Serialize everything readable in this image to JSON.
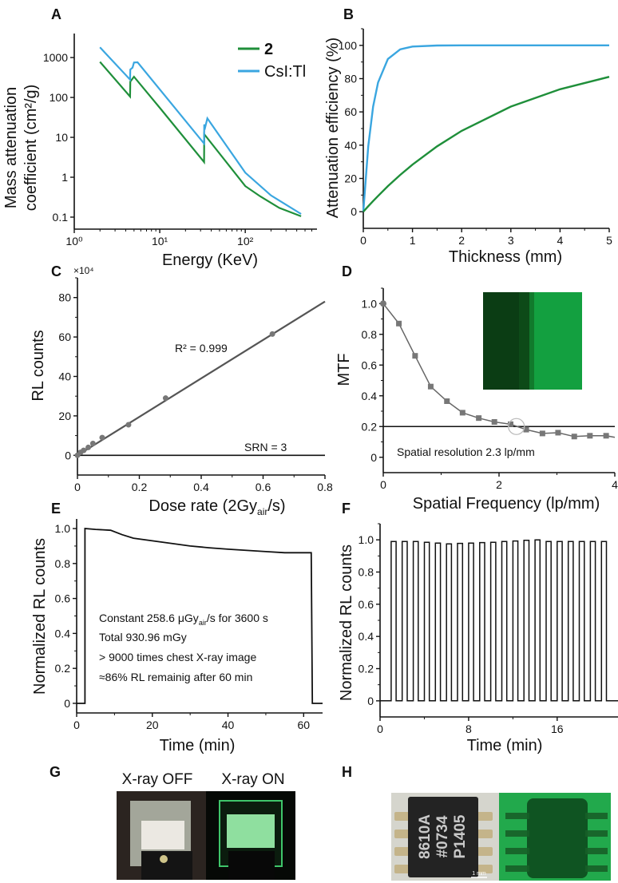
{
  "panels": {
    "A": "A",
    "B": "B",
    "C": "C",
    "D": "D",
    "E": "E",
    "F": "F",
    "G": "G",
    "H": "H"
  },
  "colors": {
    "green": "#1f8f3a",
    "blue": "#3aa6e0",
    "gray": "#555555",
    "black": "#111111"
  },
  "chart_data": [
    {
      "id": "A",
      "type": "line",
      "xlabel": "Energy (KeV)",
      "ylabel_lines": [
        "Mass attenuation",
        "coefficient (cm²/g)"
      ],
      "xscale": "log",
      "yscale": "log",
      "xlim": [
        1,
        690
      ],
      "ylim": [
        0.05,
        4000
      ],
      "xticks": [
        1,
        10,
        100
      ],
      "xtick_labels": [
        "10⁰",
        "10¹",
        "10²"
      ],
      "yticks": [
        1000,
        100,
        10,
        1,
        0.1
      ],
      "ytick_labels": [
        "1000",
        "100",
        "10",
        "1",
        "0.1"
      ],
      "legend": "top-right",
      "series": [
        {
          "name": "2",
          "color": "#1f8f3a",
          "points": [
            [
              2,
              780
            ],
            [
              4.5,
              105
            ],
            [
              4.52,
              250
            ],
            [
              5,
              330
            ],
            [
              10,
              55
            ],
            [
              33,
              2.4
            ],
            [
              33.1,
              12
            ],
            [
              100,
              0.6
            ],
            [
              150,
              0.33
            ],
            [
              250,
              0.17
            ],
            [
              450,
              0.105
            ]
          ]
        },
        {
          "name": "CsI:Tl",
          "color": "#3aa6e0",
          "points": [
            [
              2,
              1800
            ],
            [
              4.5,
              280
            ],
            [
              4.52,
              500
            ],
            [
              4.8,
              560
            ],
            [
              5,
              750
            ],
            [
              5.5,
              760
            ],
            [
              33,
              7
            ],
            [
              33.1,
              21
            ],
            [
              34,
              18
            ],
            [
              36,
              30
            ],
            [
              100,
              1.3
            ],
            [
              200,
              0.35
            ],
            [
              450,
              0.12
            ]
          ]
        }
      ]
    },
    {
      "id": "B",
      "type": "line",
      "xlabel": "Thickness (mm)",
      "ylabel": "Attenuation efficiency (%)",
      "xlim": [
        0,
        5
      ],
      "ylim": [
        -10,
        110
      ],
      "xticks": [
        0,
        1,
        2,
        3,
        4,
        5
      ],
      "yticks": [
        0,
        20,
        40,
        60,
        80,
        100
      ],
      "x": [
        0,
        0.1,
        0.2,
        0.3,
        0.5,
        0.75,
        1,
        1.5,
        2,
        3,
        4,
        5
      ],
      "series": [
        {
          "name": "CsI:Tl",
          "color": "#3aa6e0",
          "values": [
            0,
            39.3,
            63.2,
            77.7,
            91.8,
            97.6,
            99.3,
            99.9,
            100,
            100,
            100,
            100
          ]
        },
        {
          "name": "2",
          "color": "#1f8f3a",
          "values": [
            0,
            3.3,
            6.4,
            9.5,
            15.4,
            22.1,
            28.3,
            39.3,
            48.6,
            63.2,
            73.6,
            81.1
          ]
        }
      ]
    },
    {
      "id": "C",
      "type": "scatter",
      "xlabel_parts": [
        "Dose rate (2Gy",
        "air",
        "/s)"
      ],
      "ylabel": "RL counts",
      "multiplier": "×10⁴",
      "xlim": [
        0,
        0.8
      ],
      "ylim": [
        -10,
        90
      ],
      "xticks": [
        0,
        0.2,
        0.4,
        0.6,
        0.8
      ],
      "yticks": [
        0,
        20,
        40,
        60,
        80
      ],
      "points": [
        [
          0,
          0
        ],
        [
          0.01,
          1.5
        ],
        [
          0.02,
          2.5
        ],
        [
          0.035,
          4
        ],
        [
          0.05,
          6
        ],
        [
          0.08,
          9
        ],
        [
          0.165,
          15.5
        ],
        [
          0.285,
          29
        ],
        [
          0.63,
          61.5
        ]
      ],
      "fit": {
        "x": [
          0,
          0.8
        ],
        "y": [
          0,
          78
        ]
      },
      "srn_level": 0,
      "annotations": {
        "r2": "R² = 0.999",
        "srn": "SRN = 3"
      }
    },
    {
      "id": "D",
      "type": "line",
      "xlabel": "Spatial Frequency (lp/mm)",
      "ylabel": "MTF",
      "xlim": [
        0,
        4
      ],
      "ylim": [
        -0.1,
        1.1
      ],
      "xticks": [
        0,
        2,
        4
      ],
      "yticks": [
        0,
        0.2,
        0.4,
        0.6,
        0.8,
        1.0
      ],
      "ytick_labels": [
        "0",
        "0.2",
        "0.4",
        "0.6",
        "0.8",
        "1.0"
      ],
      "x": [
        0,
        0.27,
        0.55,
        0.82,
        1.1,
        1.37,
        1.65,
        1.92,
        2.2,
        2.47,
        2.75,
        3.02,
        3.3,
        3.57,
        3.85,
        4.0
      ],
      "values": [
        1.0,
        0.87,
        0.66,
        0.46,
        0.365,
        0.29,
        0.255,
        0.23,
        0.215,
        0.18,
        0.155,
        0.16,
        0.135,
        0.14,
        0.14,
        0.13
      ],
      "threshold": 0.2,
      "highlight_x": 2.3,
      "annotation": "Spatial resolution 2.3 lp/mm"
    },
    {
      "id": "E",
      "type": "line",
      "xlabel": "Time (min)",
      "ylabel": "Normalized RL counts",
      "xlim": [
        0,
        65
      ],
      "ylim": [
        -0.055,
        1.055
      ],
      "xticks": [
        0,
        20,
        40,
        60
      ],
      "yticks": [
        0,
        0.2,
        0.4,
        0.6,
        0.8,
        1.0
      ],
      "ytick_labels": [
        "0",
        "0.2",
        "0.4",
        "0.6",
        "0.8",
        "1.0"
      ],
      "points": [
        [
          0,
          0
        ],
        [
          2.2,
          0
        ],
        [
          2.2,
          1.0
        ],
        [
          5,
          0.995
        ],
        [
          9,
          0.99
        ],
        [
          12,
          0.965
        ],
        [
          15,
          0.945
        ],
        [
          20,
          0.93
        ],
        [
          25,
          0.915
        ],
        [
          30,
          0.9
        ],
        [
          35,
          0.89
        ],
        [
          40,
          0.882
        ],
        [
          45,
          0.875
        ],
        [
          50,
          0.868
        ],
        [
          55,
          0.862
        ],
        [
          62,
          0.862
        ],
        [
          62.3,
          0
        ],
        [
          65,
          0
        ]
      ],
      "annotation_lines": [
        [
          "Constant 258.6 μGy",
          "air",
          "/s for 3600 s"
        ],
        [
          "Total 930.96 mGy"
        ],
        [
          "> 9000 times chest X-ray image"
        ],
        [
          "≈86% RL remainig after 60 min"
        ]
      ]
    },
    {
      "id": "F",
      "type": "line",
      "xlabel": "Time (min)",
      "ylabel": "Normalized RL counts",
      "xlim": [
        0,
        22
      ],
      "ylim": [
        -0.1,
        1.1
      ],
      "xticks": [
        0,
        8,
        16
      ],
      "yticks": [
        0,
        0.2,
        0.4,
        0.6,
        0.8,
        1.0
      ],
      "ytick_labels": [
        "0",
        "0.2",
        "0.4",
        "0.6",
        "0.8",
        "1.0"
      ],
      "pulse_on": [
        1,
        2,
        3,
        4,
        5,
        6,
        7,
        8,
        9,
        10,
        11,
        12,
        13,
        14,
        15,
        16,
        17,
        18,
        19,
        20
      ],
      "pulse_width": 0.45,
      "pulse_values": [
        0.99,
        0.99,
        0.99,
        0.985,
        0.98,
        0.975,
        0.978,
        0.98,
        0.983,
        0.985,
        0.99,
        0.993,
        0.997,
        1.0,
        0.99,
        0.99,
        0.99,
        0.99,
        0.99,
        0.99
      ]
    }
  ],
  "photos": {
    "G": {
      "off_label": "X-ray OFF",
      "on_label": "X-ray ON"
    },
    "H": {
      "chip_lines": [
        "8610A",
        "#0734",
        "P1405"
      ],
      "scale_bar": "1 mm"
    }
  }
}
